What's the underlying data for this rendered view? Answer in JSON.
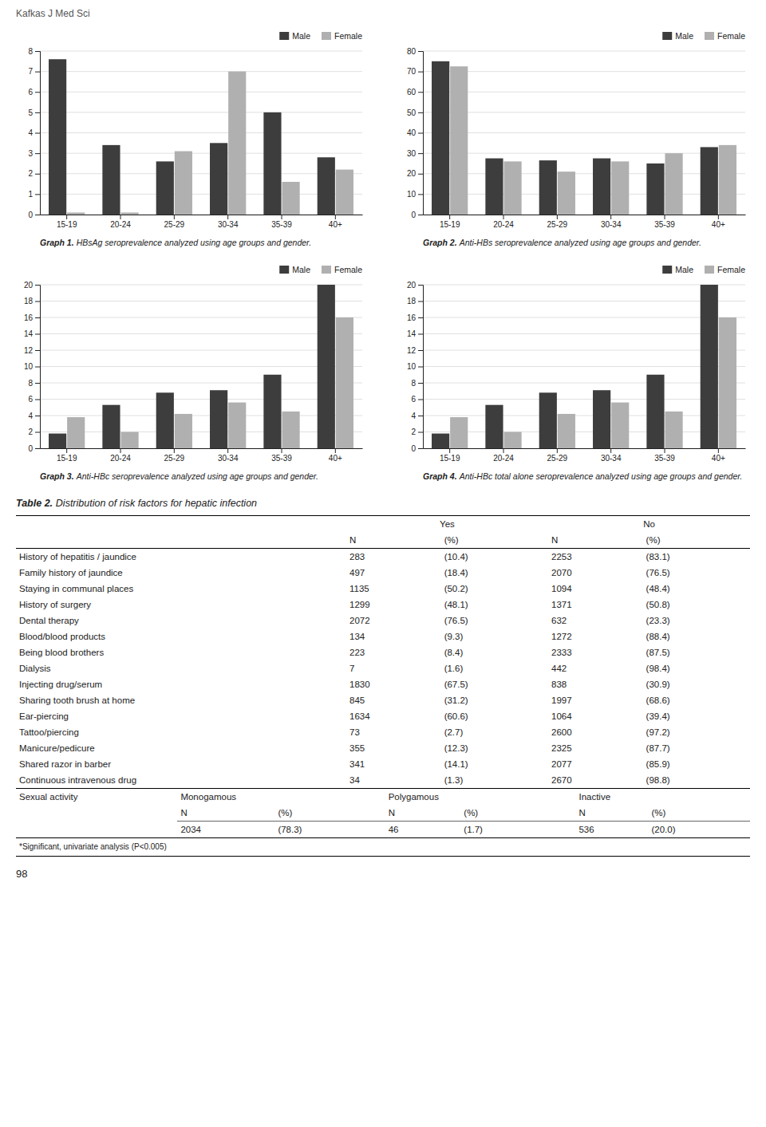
{
  "header_text": "Kafkas J Med Sci",
  "page_number": "98",
  "chart_data": [
    {
      "type": "bar",
      "title": "Graph 1.",
      "subtitle": "HBsAg seroprevalence analyzed using age groups and gender.",
      "categories": [
        "15-19",
        "20-24",
        "25-29",
        "30-34",
        "35-39",
        "40+"
      ],
      "series": [
        {
          "name": "Male",
          "color": "#3d3d3d",
          "values": [
            7.6,
            3.4,
            2.6,
            3.5,
            5.0,
            2.8
          ]
        },
        {
          "name": "Female",
          "color": "#b0b0b0",
          "values": [
            0.1,
            0.1,
            3.1,
            7.0,
            1.6,
            2.2
          ]
        }
      ],
      "ylim": [
        0,
        8
      ],
      "yticks": [
        0,
        1,
        2,
        3,
        4,
        5,
        6,
        7,
        8
      ],
      "grid": true,
      "legend": "upper right"
    },
    {
      "type": "bar",
      "title": "Graph 2.",
      "subtitle": "Anti-HBs seroprevalence analyzed using age groups and gender.",
      "categories": [
        "15-19",
        "20-24",
        "25-29",
        "30-34",
        "35-39",
        "40+"
      ],
      "series": [
        {
          "name": "Male",
          "color": "#3d3d3d",
          "values": [
            75.0,
            27.5,
            26.5,
            27.5,
            25.0,
            33.0
          ]
        },
        {
          "name": "Female",
          "color": "#b0b0b0",
          "values": [
            72.5,
            26.0,
            21.0,
            26.0,
            30.0,
            34.0
          ]
        }
      ],
      "ylim": [
        0,
        80
      ],
      "yticks": [
        0,
        10,
        20,
        30,
        40,
        50,
        60,
        70,
        80
      ],
      "grid": true,
      "legend": "upper right"
    },
    {
      "type": "bar",
      "title": "Graph 3.",
      "subtitle": "Anti-HBc seroprevalence analyzed using age groups and gender.",
      "categories": [
        "15-19",
        "20-24",
        "25-29",
        "30-34",
        "35-39",
        "40+"
      ],
      "series": [
        {
          "name": "Male",
          "color": "#3d3d3d",
          "values": [
            1.8,
            5.3,
            6.8,
            7.1,
            9.0,
            20.0
          ]
        },
        {
          "name": "Female",
          "color": "#b0b0b0",
          "values": [
            3.8,
            2.0,
            4.2,
            5.6,
            4.5,
            16.0
          ]
        }
      ],
      "ylim": [
        0,
        20
      ],
      "yticks": [
        0,
        2,
        4,
        6,
        8,
        10,
        12,
        14,
        16,
        18,
        20
      ],
      "grid": true,
      "legend": "upper right"
    },
    {
      "type": "bar",
      "title": "Graph 4.",
      "subtitle": "Anti-HBc total alone seroprevalence analyzed using age groups and gender.",
      "categories": [
        "15-19",
        "20-24",
        "25-29",
        "30-34",
        "35-39",
        "40+"
      ],
      "series": [
        {
          "name": "Male",
          "color": "#3d3d3d",
          "values": [
            1.8,
            5.3,
            6.8,
            7.1,
            9.0,
            20.0
          ]
        },
        {
          "name": "Female",
          "color": "#b0b0b0",
          "values": [
            3.8,
            2.0,
            4.2,
            5.6,
            4.5,
            16.0
          ]
        }
      ],
      "ylim": [
        0,
        20
      ],
      "yticks": [
        0,
        2,
        4,
        6,
        8,
        10,
        12,
        14,
        16,
        18,
        20
      ],
      "grid": true,
      "legend": "upper right"
    }
  ],
  "table": {
    "title": "Table 2.",
    "subtitle": "Distribution of risk factors for hepatic infection",
    "column_groups": [
      "Yes",
      "No"
    ],
    "subcolumns": [
      "N",
      "(%)"
    ],
    "rows": [
      {
        "label": "History of hepatitis / jaundice",
        "values": [
          "283",
          "(10.4)",
          "2253",
          "(83.1)"
        ]
      },
      {
        "label": "Family history of jaundice",
        "values": [
          "497",
          "(18.4)",
          "2070",
          "(76.5)"
        ]
      },
      {
        "label": "Staying in communal places",
        "values": [
          "1135",
          "(50.2)",
          "1094",
          "(48.4)"
        ]
      },
      {
        "label": "History of surgery",
        "values": [
          "1299",
          "(48.1)",
          "1371",
          "(50.8)"
        ]
      },
      {
        "label": "Dental therapy",
        "values": [
          "2072",
          "(76.5)",
          "632",
          "(23.3)"
        ]
      },
      {
        "label": "Blood/blood products",
        "values": [
          "134",
          "(9.3)",
          "1272",
          "(88.4)"
        ]
      },
      {
        "label": "Being blood brothers",
        "values": [
          "223",
          "(8.4)",
          "2333",
          "(87.5)"
        ]
      },
      {
        "label": "Dialysis",
        "values": [
          "7",
          "(1.6)",
          "442",
          "(98.4)"
        ]
      },
      {
        "label": "Injecting drug/serum",
        "values": [
          "1830",
          "(67.5)",
          "838",
          "(30.9)"
        ]
      },
      {
        "label": "Sharing tooth brush at home",
        "values": [
          "845",
          "(31.2)",
          "1997",
          "(68.6)"
        ]
      },
      {
        "label": "Ear-piercing",
        "values": [
          "1634",
          "(60.6)",
          "1064",
          "(39.4)"
        ]
      },
      {
        "label": "Tattoo/piercing",
        "values": [
          "73",
          "(2.7)",
          "2600",
          "(97.2)"
        ]
      },
      {
        "label": "Manicure/pedicure",
        "values": [
          "355",
          "(12.3)",
          "2325",
          "(87.7)"
        ]
      },
      {
        "label": "Shared razor in barber",
        "values": [
          "341",
          "(14.1)",
          "2077",
          "(85.9)"
        ]
      },
      {
        "label": "Continuous intravenous drug",
        "values": [
          "34",
          "(1.3)",
          "2670",
          "(98.8)"
        ]
      }
    ],
    "sexual_activity": {
      "label": "Sexual activity",
      "groups": [
        "Monogamous",
        "Polygamous",
        "Inactive"
      ],
      "n": [
        "2034",
        "46",
        "536"
      ],
      "pct": [
        "(78.3)",
        "(1.7)",
        "(20.0)"
      ]
    },
    "footnote": "*Significant, univariate analysis (P<0.005)"
  }
}
